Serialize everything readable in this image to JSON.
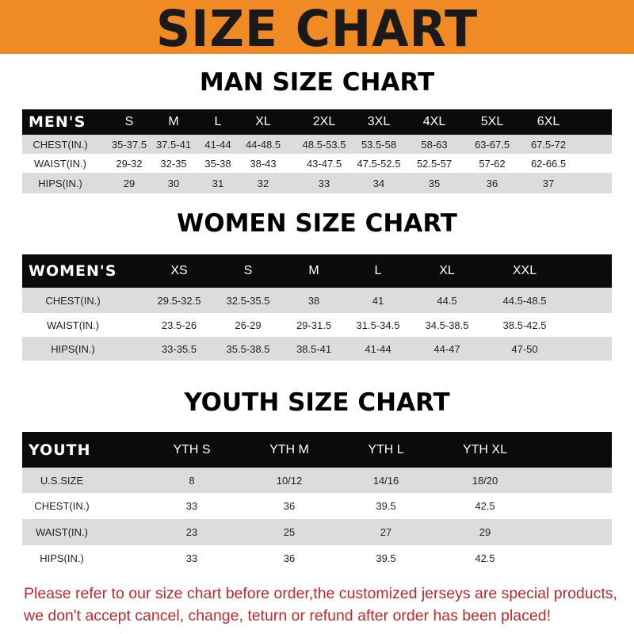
{
  "banner": {
    "title": "SIZE CHART",
    "color": "#f08a24"
  },
  "men": {
    "title": "MAN SIZE CHART",
    "header": [
      "MEN'S",
      "S",
      "M",
      "L",
      "XL",
      "2XL",
      "3XL",
      "4XL",
      "5XL",
      "6XL"
    ],
    "rows": [
      [
        "CHEST(IN.)",
        "35-37.5",
        "37.5-41",
        "41-44",
        "44-48.5",
        "48.5-53.5",
        "53.5-58",
        "58-63",
        "63-67.5",
        "67.5-72"
      ],
      [
        "WAIST(IN.)",
        "29-32",
        "32-35",
        "35-38",
        "38-43",
        "43-47.5",
        "47.5-52.5",
        "52.5-57",
        "57-62",
        "62-66.5"
      ],
      [
        "HIPS(IN.)",
        "29",
        "30",
        "31",
        "32",
        "33",
        "34",
        "35",
        "36",
        "37"
      ]
    ]
  },
  "women": {
    "title": "WOMEN SIZE CHART",
    "header": [
      "WOMEN'S",
      "XS",
      "S",
      "M",
      "L",
      "XL",
      "XXL"
    ],
    "rows": [
      [
        "CHEST(IN.)",
        "29.5-32.5",
        "32.5-35.5",
        "38",
        "41",
        "44.5",
        "44.5-48.5"
      ],
      [
        "WAIST(IN.)",
        "23.5-26",
        "26-29",
        "29-31.5",
        "31.5-34.5",
        "34.5-38.5",
        "38.5-42.5"
      ],
      [
        "HIPS(IN.)",
        "33-35.5",
        "35.5-38.5",
        "38.5-41",
        "41-44",
        "44-47",
        "47-50"
      ]
    ]
  },
  "youth": {
    "title": "YOUTH SIZE CHART",
    "header": [
      "YOUTH",
      "YTH S",
      "YTH M",
      "YTH L",
      "YTH XL"
    ],
    "rows": [
      [
        "U.S.SIZE",
        "8",
        "10/12",
        "14/16",
        "18/20"
      ],
      [
        "CHEST(IN.)",
        "33",
        "36",
        "39.5",
        "42.5"
      ],
      [
        "WAIST(IN.)",
        "23",
        "25",
        "27",
        "29"
      ],
      [
        "HIPS(IN.)",
        "33",
        "36",
        "39.5",
        "42.5"
      ]
    ]
  },
  "footer": {
    "line1": "Please refer to our size chart before order,the customized jerseys are special products,",
    "line2": "we don't accept cancel, change, teturn or refund after order has been placed!",
    "color": "#c0282d"
  }
}
